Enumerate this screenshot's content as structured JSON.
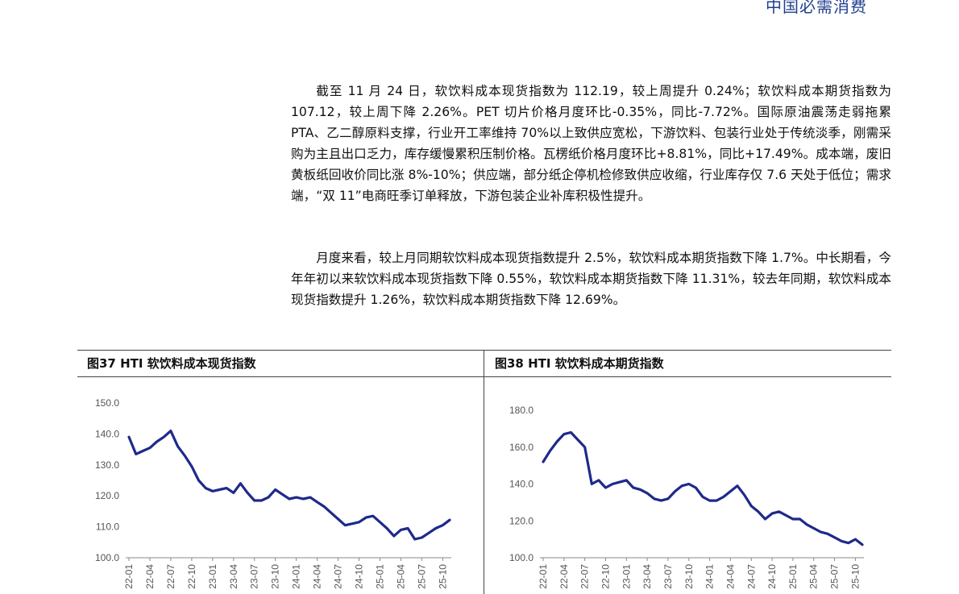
{
  "header": {
    "brand": "中国必需消费"
  },
  "body": {
    "paragraph_1": "截至 11 月 24 日，软饮料成本现货指数为 112.19，较上周提升 0.24%；软饮料成本期货指数为 107.12，较上周下降 2.26%。PET 切片价格月度环比-0.35%，同比-7.72%。国际原油震荡走弱拖累 PTA、乙二醇原料支撑，行业开工率维持 70%以上致供应宽松，下游饮料、包装行业处于传统淡季，刚需采购为主且出口乏力，库存缓慢累积压制价格。瓦楞纸价格月度环比+8.81%，同比+17.49%。成本端，废旧黄板纸回收价同比涨 8%-10%；供应端，部分纸企停机检修致供应收缩，行业库存仅 7.6 天处于低位；需求端，“双 11”电商旺季订单释放，下游包装企业补库积极性提升。",
    "paragraph_2": "月度来看，较上月同期软饮料成本现货指数提升 2.5%，软饮料成本期货指数下降 1.7%。中长期看，今年年初以来软饮料成本现货指数下降 0.55%，软饮料成本期货指数下降 11.31%，较去年同期，软饮料成本现货指数提升 1.26%，软饮料成本期货指数下降 12.69%。"
  },
  "figures": {
    "fig37_title": "图37 HTI 软饮料成本现货指数",
    "fig38_title": "图38 HTI 软饮料成本期货指数"
  },
  "chart_data": [
    {
      "id": "fig37",
      "type": "line",
      "title": "图37 HTI 软饮料成本现货指数",
      "xlabel": "",
      "ylabel": "",
      "ylim": [
        100,
        150
      ],
      "yticks": [
        "100.0",
        "110.0",
        "120.0",
        "130.0",
        "140.0",
        "150.0"
      ],
      "x_tick_labels": [
        "22-01",
        "22-04",
        "22-07",
        "22-10",
        "23-01",
        "23-04",
        "23-07",
        "23-10",
        "24-01",
        "24-04",
        "24-07",
        "24-10",
        "25-01",
        "25-04",
        "25-07",
        "25-10"
      ],
      "x": [
        "22-01",
        "22-02",
        "22-03",
        "22-04",
        "22-05",
        "22-06",
        "22-07",
        "22-08",
        "22-09",
        "22-10",
        "22-11",
        "22-12",
        "23-01",
        "23-02",
        "23-03",
        "23-04",
        "23-05",
        "23-06",
        "23-07",
        "23-08",
        "23-09",
        "23-10",
        "23-11",
        "23-12",
        "24-01",
        "24-02",
        "24-03",
        "24-04",
        "24-05",
        "24-06",
        "24-07",
        "24-08",
        "24-09",
        "24-10",
        "24-11",
        "24-12",
        "25-01",
        "25-02",
        "25-03",
        "25-04",
        "25-05",
        "25-06",
        "25-07",
        "25-08",
        "25-09",
        "25-10",
        "25-11"
      ],
      "grid": false,
      "legend": "none",
      "color": "#1e2a8a",
      "series": [
        {
          "values": [
            139.0,
            133.5,
            134.5,
            135.5,
            137.5,
            139.0,
            141.0,
            136.0,
            133.0,
            129.5,
            125.0,
            122.5,
            121.5,
            122.0,
            122.5,
            121.0,
            124.0,
            121.0,
            118.5,
            118.5,
            119.5,
            122.0,
            120.5,
            119.0,
            119.5,
            119.0,
            119.5,
            118.0,
            116.5,
            114.5,
            112.5,
            110.5,
            111.0,
            111.5,
            113.0,
            113.5,
            111.5,
            109.5,
            107.0,
            109.0,
            109.5,
            106.0,
            106.5,
            108.0,
            109.5,
            110.5,
            112.2
          ]
        }
      ]
    },
    {
      "id": "fig38",
      "type": "line",
      "title": "图38 HTI 软饮料成本期货指数",
      "xlabel": "",
      "ylabel": "",
      "ylim": [
        100,
        180
      ],
      "yticks": [
        "100.0",
        "120.0",
        "140.0",
        "160.0",
        "180.0"
      ],
      "x_tick_labels": [
        "22-01",
        "22-04",
        "22-07",
        "22-10",
        "23-01",
        "23-04",
        "23-07",
        "23-10",
        "24-01",
        "24-04",
        "24-07",
        "24-10",
        "25-01",
        "25-04",
        "25-07",
        "25-10"
      ],
      "x": [
        "22-01",
        "22-02",
        "22-03",
        "22-04",
        "22-05",
        "22-06",
        "22-07",
        "22-08",
        "22-09",
        "22-10",
        "22-11",
        "22-12",
        "23-01",
        "23-02",
        "23-03",
        "23-04",
        "23-05",
        "23-06",
        "23-07",
        "23-08",
        "23-09",
        "23-10",
        "23-11",
        "23-12",
        "24-01",
        "24-02",
        "24-03",
        "24-04",
        "24-05",
        "24-06",
        "24-07",
        "24-08",
        "24-09",
        "24-10",
        "24-11",
        "24-12",
        "25-01",
        "25-02",
        "25-03",
        "25-04",
        "25-05",
        "25-06",
        "25-07",
        "25-08",
        "25-09",
        "25-10",
        "25-11"
      ],
      "grid": false,
      "legend": "none",
      "color": "#1e2a8a",
      "series": [
        {
          "values": [
            152.0,
            158.0,
            163.0,
            167.0,
            168.0,
            164.0,
            160.0,
            140.0,
            142.0,
            138.0,
            140.0,
            141.0,
            142.0,
            138.0,
            137.0,
            135.0,
            132.0,
            131.0,
            132.0,
            136.0,
            139.0,
            140.0,
            138.0,
            133.0,
            131.0,
            131.0,
            133.0,
            136.0,
            139.0,
            134.0,
            128.0,
            125.0,
            121.0,
            124.0,
            125.0,
            123.0,
            121.0,
            121.0,
            118.0,
            116.0,
            114.0,
            113.0,
            111.0,
            109.0,
            108.0,
            110.0,
            107.1
          ]
        }
      ]
    }
  ]
}
